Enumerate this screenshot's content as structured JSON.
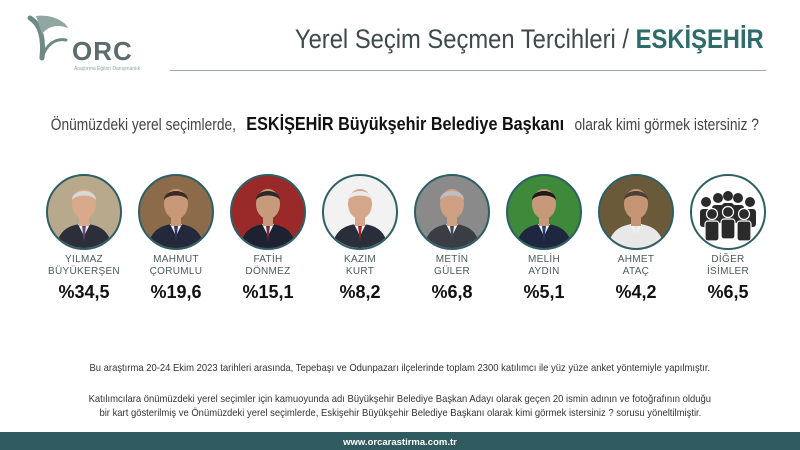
{
  "logo": {
    "text": "ORC",
    "subtitle": "Araştırma Eğitim Danışmanlık",
    "icon": "orc-logo-icon"
  },
  "header": {
    "title_prefix": "Yerel Seçim Seçmen Tercihleri / ",
    "title_highlight": "ESKİŞEHİR"
  },
  "question": {
    "before": "Önümüzdeki yerel seçimlerde, ",
    "bold": "ESKİŞEHİR Büyükşehir Belediye Başkanı",
    "after": " olarak kimi görmek istersiniz ?"
  },
  "chart_data": {
    "type": "bar",
    "categories": [
      "YILMAZ BÜYÜKERŞEN",
      "MAHMUT ÇORUMLU",
      "FATİH DÖNMEZ",
      "KAZIM KURT",
      "METİN GÜLER",
      "MELİH AYDIN",
      "AHMET ATAÇ",
      "DİĞER İSİMLER"
    ],
    "values": [
      34.5,
      19.6,
      15.1,
      8.2,
      6.8,
      5.1,
      4.2,
      6.5
    ],
    "unit": "%",
    "labels": [
      "%34,5",
      "%19,6",
      "%15,1",
      "%8,2",
      "%6,8",
      "%5,1",
      "%4,2",
      "%6,5"
    ],
    "title": "Yerel Seçim Seçmen Tercihleri / ESKİŞEHİR"
  },
  "candidates": [
    {
      "first": "YILMAZ",
      "last": "BÜYÜKERŞEN",
      "pct": "%34,5",
      "bg": "#b9a98c",
      "suit": "#2c2f3a",
      "hair": "#d9d9d9",
      "skin": "#d8a98a",
      "tie": "#6a4a7a"
    },
    {
      "first": "MAHMUT",
      "last": "ÇORUMLU",
      "pct": "%19,6",
      "bg": "#8c6b4a",
      "suit": "#23283a",
      "hair": "#3a2c22",
      "skin": "#c99878",
      "tie": "#2a3a6a"
    },
    {
      "first": "FATİH",
      "last": "DÖNMEZ",
      "pct": "%15,1",
      "bg": "#9a2a2a",
      "suit": "#1e2230",
      "hair": "#2a2a2a",
      "skin": "#c89a7c",
      "tie": "#7a2a3a"
    },
    {
      "first": "KAZIM",
      "last": "KURT",
      "pct": "%8,2",
      "bg": "#f2f2f2",
      "suit": "#2a2e3a",
      "hair": "#e8e8e8",
      "skin": "#d6a68a",
      "tie": "#a02a2a"
    },
    {
      "first": "METİN",
      "last": "GÜLER",
      "pct": "%6,8",
      "bg": "#8a8a8a",
      "suit": "#3a3d44",
      "hair": "#bfbfbf",
      "skin": "#cfa083",
      "tie": "#4a4a5a"
    },
    {
      "first": "MELİH",
      "last": "AYDIN",
      "pct": "%5,1",
      "bg": "#3f8a3a",
      "suit": "#1f2640",
      "hair": "#1f1a18",
      "skin": "#c8987a",
      "tie": "#2a3a7a"
    },
    {
      "first": "AHMET",
      "last": "ATAÇ",
      "pct": "%4,2",
      "bg": "#6a5a3a",
      "suit": "#e8e8e8",
      "hair": "#4a4036",
      "skin": "#c49474",
      "tie": "#e8e8e8"
    },
    {
      "first": "DİĞER",
      "last": "İSİMLER",
      "pct": "%6,5",
      "icon": "people-group-icon"
    }
  ],
  "notes": {
    "method": "Bu araştırma 20-24 Ekim 2023 tarihleri arasında, Tepebaşı ve Odunpazarı ilçelerinde toplam 2300 katılımcı ile yüz yüze anket yöntemiyle yapılmıştır.",
    "question_line1": "Katılımcılara önümüzdeki yerel seçimler için kamuoyunda adı Büyükşehir Belediye Başkan Adayı olarak geçen 20 ismin adının ve fotoğrafının olduğu",
    "question_line2": "bir kart gösterilmiş ve Önümüzdeki yerel seçimlerde, Eskişehir Büyükşehir Belediye Başkanı olarak kimi görmek istersiniz ? sorusu yöneltilmiştir."
  },
  "footer": {
    "url": "www.orcarastirma.com.tr"
  },
  "colors": {
    "accent": "#2e6b6b",
    "footer_bg": "#2f5a5f",
    "ring": "#2f5f66"
  }
}
